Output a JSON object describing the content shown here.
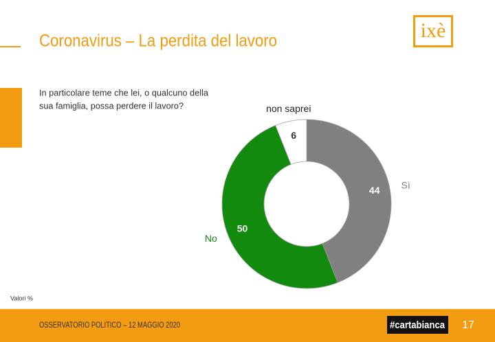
{
  "chart_data": {
    "type": "pie",
    "donut": true,
    "title": "Coronavirus – La perdita del lavoro",
    "subtitle": [
      "In particolare teme che lei, o qualcuno della",
      "sua famiglia, possa perdere il lavoro?"
    ],
    "categories": [
      "Sì",
      "No",
      "non saprei"
    ],
    "values": [
      44,
      50,
      6
    ],
    "colors": [
      "#808080",
      "#128a0e",
      "#ffffff"
    ],
    "label_colors": [
      "#808080",
      "#128a0e",
      "#222222"
    ],
    "note": "Valori %"
  },
  "logo": "ixè",
  "footer": {
    "text": "OSSERVATORIO POLITICO – 12 MAGGIO 2020",
    "brand": "#cartabianca",
    "page_number": "17"
  }
}
